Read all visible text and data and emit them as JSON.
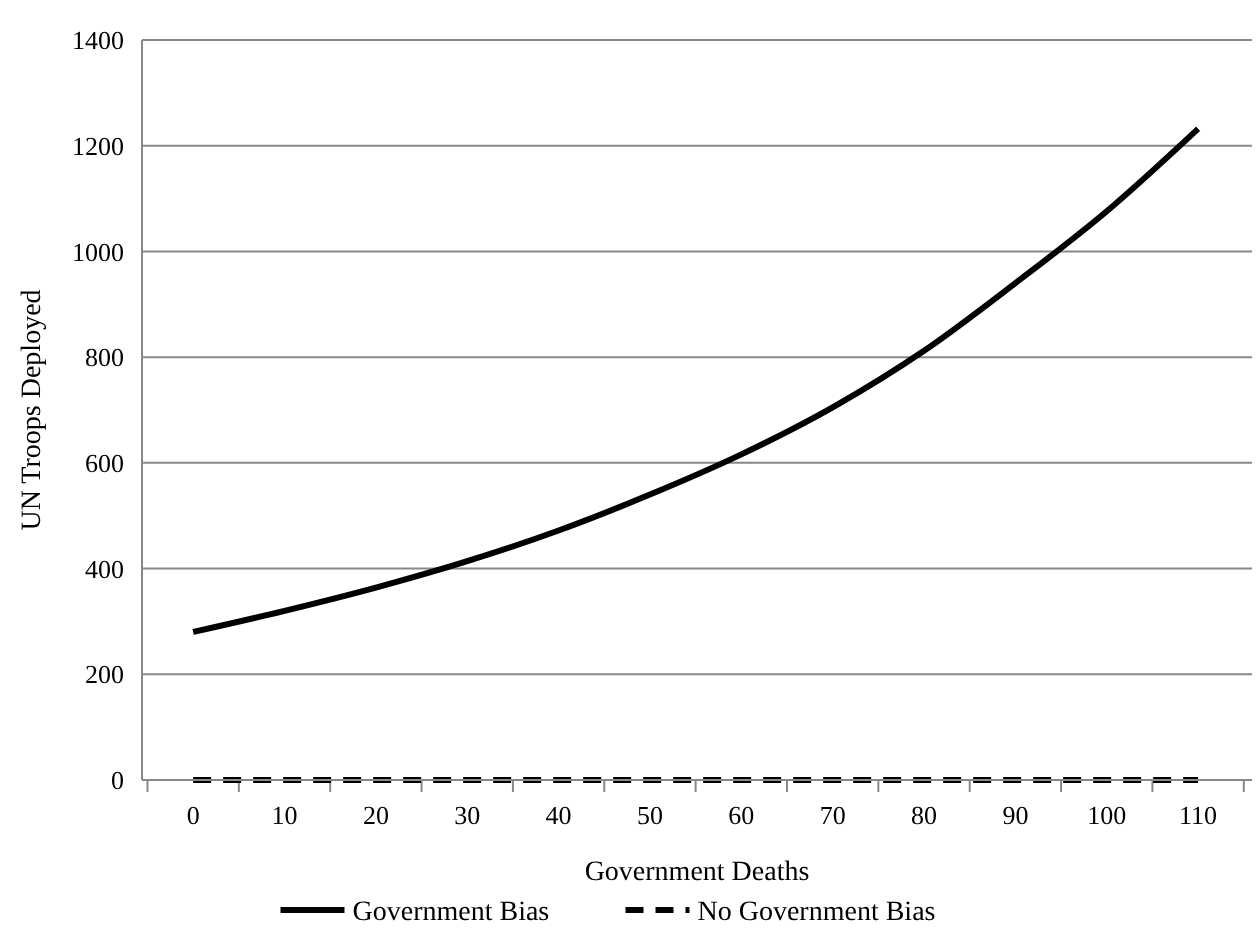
{
  "chart_data": {
    "type": "line",
    "xlabel": "Government Deaths",
    "ylabel": "UN Troops Deployed",
    "x": [
      0,
      10,
      20,
      30,
      40,
      50,
      60,
      70,
      80,
      90,
      100,
      110
    ],
    "series": [
      {
        "name": "Government Bias",
        "color": "#000000",
        "line_style": "solid",
        "values": [
          280,
          320,
          364,
          414,
          472,
          540,
          616,
          705,
          812,
          940,
          1076,
          1232
        ]
      },
      {
        "name": "No Government Bias",
        "color": "#000000",
        "line_style": "dashed",
        "values": [
          0,
          0,
          0,
          0,
          0,
          0,
          0,
          0,
          0,
          0,
          0,
          0
        ]
      }
    ],
    "xlim": [
      -5.6,
      115.9
    ],
    "xticks": [
      {
        "value": -5,
        "label": null
      },
      0,
      {
        "value": 5,
        "label": null
      },
      10,
      {
        "value": 15,
        "label": null
      },
      20,
      {
        "value": 25,
        "label": null
      },
      30,
      {
        "value": 35,
        "label": null
      },
      40,
      {
        "value": 45,
        "label": null
      },
      50,
      {
        "value": 55,
        "label": null
      },
      60,
      {
        "value": 65,
        "label": null
      },
      70,
      {
        "value": 75,
        "label": null
      },
      80,
      {
        "value": 85,
        "label": null
      },
      90,
      {
        "value": 95,
        "label": null
      },
      100,
      {
        "value": 105,
        "label": null
      },
      110,
      {
        "value": 115,
        "label": null
      }
    ],
    "ylim": [
      0,
      1400
    ],
    "yticks": [
      0,
      200,
      400,
      600,
      800,
      1000,
      1200,
      1400
    ],
    "grid": "y",
    "legend": "bottom",
    "marker": "none"
  }
}
